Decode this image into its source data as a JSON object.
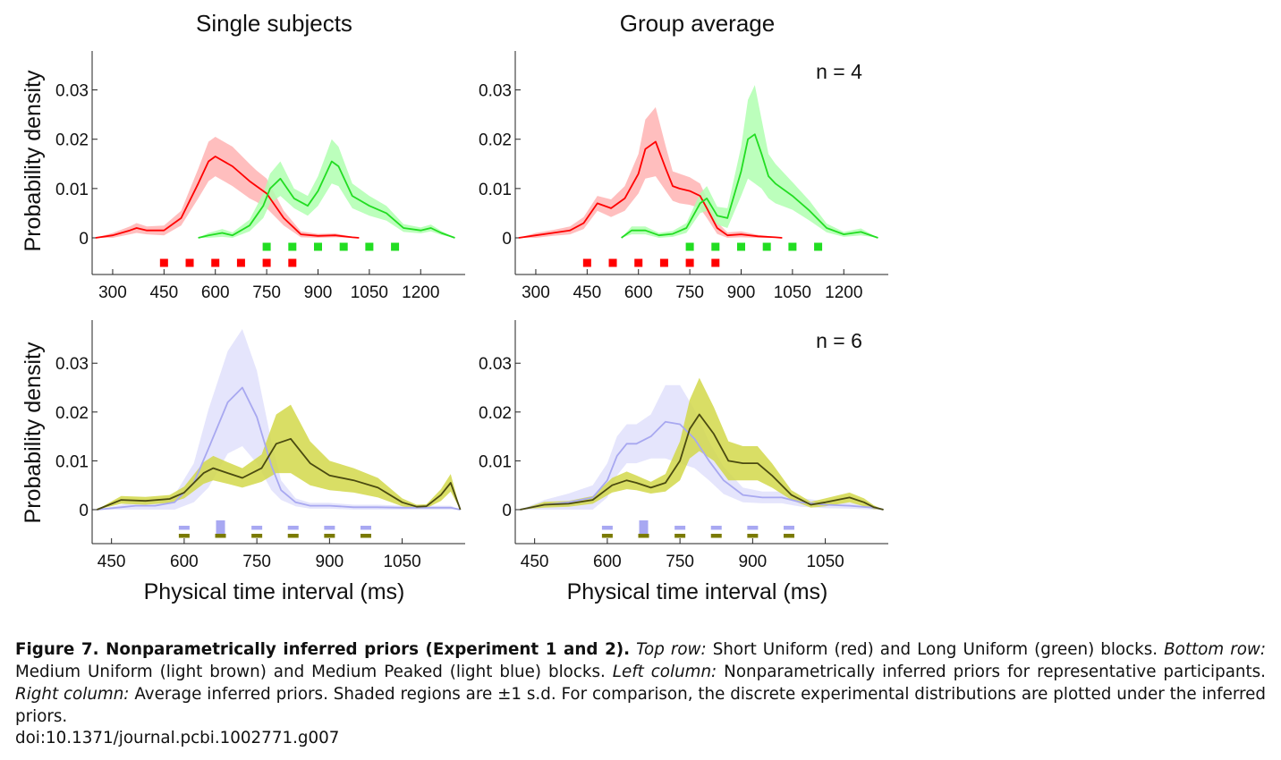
{
  "colors": {
    "short_uniform": "#ff0000",
    "short_uniform_band": "#ffb3b3",
    "long_uniform": "#22dd22",
    "long_uniform_band": "#b0ffb0",
    "medium_uniform": "#4a4a10",
    "medium_uniform_band": "#d2d84a",
    "medium_uniform_marker": "#7a7a00",
    "medium_peaked": "#a8a8f0",
    "medium_peaked_band": "#e0e0fc",
    "medium_peaked_marker": "#a8a8f2"
  },
  "chart_data": [
    {
      "type": "line",
      "title": "Single subjects",
      "ylabel": "Probability density",
      "xlabel": "",
      "xlim": [
        240,
        1330
      ],
      "ylim": [
        0,
        0.035
      ],
      "xticks": [
        "300",
        "450",
        "600",
        "750",
        "900",
        "1050",
        "1200"
      ],
      "yticks": [
        "0",
        "0.01",
        "0.02",
        "0.03"
      ],
      "annotation": "",
      "series": [
        {
          "key": "short_uniform",
          "x": [
            250,
            300,
            350,
            370,
            400,
            450,
            500,
            550,
            580,
            600,
            650,
            700,
            720,
            750,
            800,
            850,
            900,
            950,
            1000,
            1020
          ],
          "y": [
            0,
            0.0005,
            0.0015,
            0.002,
            0.0015,
            0.0015,
            0.004,
            0.011,
            0.0155,
            0.0165,
            0.0145,
            0.0115,
            0.0105,
            0.009,
            0.004,
            0.0007,
            0.0004,
            0.0005,
            0.0001,
            0
          ],
          "band": [
            0,
            0.0005,
            0.0008,
            0.001,
            0.0008,
            0.001,
            0.0015,
            0.003,
            0.004,
            0.004,
            0.004,
            0.0035,
            0.0032,
            0.003,
            0.0015,
            0.0006,
            0.0004,
            0.0004,
            0.0001,
            0
          ]
        },
        {
          "key": "long_uniform",
          "x": [
            550,
            580,
            620,
            650,
            700,
            740,
            760,
            790,
            830,
            870,
            900,
            940,
            960,
            1000,
            1050,
            1100,
            1150,
            1200,
            1230,
            1260,
            1300
          ],
          "y": [
            0,
            0.0005,
            0.001,
            0.0005,
            0.0025,
            0.0065,
            0.01,
            0.012,
            0.008,
            0.0065,
            0.0095,
            0.0155,
            0.0145,
            0.0085,
            0.0065,
            0.005,
            0.002,
            0.0015,
            0.002,
            0.001,
            0
          ],
          "band": [
            0,
            0.0005,
            0.0008,
            0.0006,
            0.0012,
            0.0025,
            0.003,
            0.0035,
            0.002,
            0.002,
            0.003,
            0.0045,
            0.004,
            0.0025,
            0.002,
            0.0015,
            0.0008,
            0.0006,
            0.0007,
            0.0004,
            0
          ]
        }
      ],
      "markers": [
        {
          "key": "long_uniform",
          "x": [
            750,
            825,
            900,
            975,
            1050,
            1125
          ]
        },
        {
          "key": "short_uniform",
          "x": [
            450,
            525,
            600,
            675,
            750,
            825
          ]
        }
      ]
    },
    {
      "type": "line",
      "title": "Group average",
      "ylabel": "",
      "xlabel": "",
      "xlim": [
        240,
        1330
      ],
      "ylim": [
        0,
        0.035
      ],
      "xticks": [
        "300",
        "450",
        "600",
        "750",
        "900",
        "1050",
        "1200"
      ],
      "yticks": [
        "0",
        "0.01",
        "0.02",
        "0.03"
      ],
      "annotation": "n = 4",
      "series": [
        {
          "key": "short_uniform",
          "x": [
            250,
            300,
            350,
            400,
            440,
            480,
            520,
            560,
            600,
            620,
            650,
            680,
            700,
            720,
            750,
            780,
            800,
            830,
            860,
            900,
            950,
            1000,
            1020
          ],
          "y": [
            0,
            0.0005,
            0.001,
            0.0015,
            0.003,
            0.007,
            0.006,
            0.008,
            0.013,
            0.018,
            0.0195,
            0.014,
            0.0105,
            0.01,
            0.0095,
            0.0085,
            0.006,
            0.002,
            0.0005,
            0.0007,
            0.0003,
            0.0001,
            0
          ],
          "band": [
            0,
            0.0005,
            0.0006,
            0.0008,
            0.0012,
            0.0015,
            0.0018,
            0.0025,
            0.004,
            0.006,
            0.007,
            0.0045,
            0.003,
            0.003,
            0.0028,
            0.0025,
            0.002,
            0.0012,
            0.0006,
            0.0006,
            0.0003,
            0.0001,
            0
          ]
        },
        {
          "key": "long_uniform",
          "x": [
            550,
            580,
            620,
            660,
            700,
            740,
            780,
            800,
            830,
            860,
            900,
            920,
            940,
            960,
            980,
            1000,
            1050,
            1100,
            1150,
            1200,
            1250,
            1300
          ],
          "y": [
            0,
            0.0015,
            0.0015,
            0.0005,
            0.0008,
            0.002,
            0.007,
            0.008,
            0.0045,
            0.004,
            0.0135,
            0.02,
            0.021,
            0.017,
            0.0125,
            0.011,
            0.0085,
            0.0055,
            0.002,
            0.0007,
            0.0012,
            0
          ],
          "band": [
            0,
            0.0008,
            0.0008,
            0.0005,
            0.0006,
            0.001,
            0.002,
            0.0025,
            0.0018,
            0.002,
            0.005,
            0.008,
            0.01,
            0.007,
            0.0045,
            0.004,
            0.0028,
            0.002,
            0.0009,
            0.0005,
            0.0007,
            0
          ]
        }
      ],
      "markers": [
        {
          "key": "long_uniform",
          "x": [
            750,
            825,
            900,
            975,
            1050,
            1125
          ]
        },
        {
          "key": "short_uniform",
          "x": [
            450,
            525,
            600,
            675,
            750,
            825
          ]
        }
      ]
    },
    {
      "type": "line",
      "title": "",
      "ylabel": "Probability density",
      "xlabel": "Physical time interval (ms)",
      "xlim": [
        410,
        1180
      ],
      "ylim": [
        0,
        0.037
      ],
      "xticks": [
        "450",
        "600",
        "750",
        "900",
        "1050"
      ],
      "yticks": [
        "0",
        "0.01",
        "0.02",
        "0.03"
      ],
      "annotation": "",
      "series": [
        {
          "key": "medium_peaked",
          "x": [
            420,
            470,
            500,
            540,
            580,
            620,
            650,
            690,
            720,
            750,
            780,
            800,
            830,
            860,
            900,
            950,
            1000,
            1050,
            1100,
            1150,
            1170
          ],
          "y": [
            0,
            0.0005,
            0.0008,
            0.0008,
            0.0015,
            0.0055,
            0.0125,
            0.022,
            0.025,
            0.019,
            0.009,
            0.004,
            0.0015,
            0.0008,
            0.0008,
            0.0005,
            0.0005,
            0.0004,
            0.0004,
            0.0004,
            0
          ],
          "band": [
            0,
            0.0005,
            0.0008,
            0.0008,
            0.0015,
            0.004,
            0.008,
            0.0105,
            0.012,
            0.0095,
            0.005,
            0.002,
            0.0008,
            0.0006,
            0.0006,
            0.0005,
            0.0005,
            0.0004,
            0.0004,
            0.0004,
            0
          ]
        },
        {
          "key": "medium_uniform",
          "x": [
            420,
            470,
            520,
            570,
            600,
            640,
            660,
            690,
            720,
            760,
            790,
            820,
            860,
            900,
            950,
            1000,
            1050,
            1080,
            1100,
            1130,
            1150,
            1170
          ],
          "y": [
            0,
            0.002,
            0.0018,
            0.0022,
            0.0035,
            0.0075,
            0.0085,
            0.0075,
            0.0065,
            0.0085,
            0.0135,
            0.0145,
            0.0095,
            0.007,
            0.006,
            0.0045,
            0.0015,
            0.0006,
            0.0007,
            0.003,
            0.0055,
            0
          ],
          "band": [
            0,
            0.0008,
            0.0008,
            0.0008,
            0.0012,
            0.0022,
            0.0025,
            0.0022,
            0.002,
            0.0028,
            0.006,
            0.007,
            0.0045,
            0.003,
            0.0025,
            0.002,
            0.0008,
            0.0004,
            0.0004,
            0.0012,
            0.0018,
            0
          ]
        }
      ],
      "markers": [
        {
          "key": "medium_peaked",
          "x": [
            600,
            675,
            750,
            825,
            900,
            975
          ],
          "center_x": 675,
          "center_tall": true
        },
        {
          "key": "medium_uniform",
          "x": [
            600,
            675,
            750,
            825,
            900,
            975
          ]
        }
      ]
    },
    {
      "type": "line",
      "title": "",
      "ylabel": "",
      "xlabel": "Physical time interval (ms)",
      "xlim": [
        410,
        1180
      ],
      "ylim": [
        0,
        0.037
      ],
      "xticks": [
        "450",
        "600",
        "750",
        "900",
        "1050"
      ],
      "yticks": [
        "0",
        "0.01",
        "0.02",
        "0.03"
      ],
      "annotation": "n = 6",
      "series": [
        {
          "key": "medium_peaked",
          "x": [
            420,
            470,
            520,
            570,
            600,
            620,
            640,
            660,
            690,
            720,
            750,
            780,
            810,
            840,
            880,
            920,
            960,
            1000,
            1050,
            1100,
            1150,
            1170
          ],
          "y": [
            0,
            0.001,
            0.0015,
            0.0025,
            0.006,
            0.011,
            0.0135,
            0.0135,
            0.015,
            0.018,
            0.0175,
            0.0145,
            0.01,
            0.006,
            0.003,
            0.0025,
            0.0025,
            0.0015,
            0.001,
            0.0008,
            0.0004,
            0
          ],
          "band": [
            0,
            0.001,
            0.0018,
            0.0025,
            0.0035,
            0.004,
            0.004,
            0.004,
            0.0045,
            0.0075,
            0.008,
            0.006,
            0.004,
            0.0028,
            0.0015,
            0.0012,
            0.0012,
            0.0009,
            0.0007,
            0.0006,
            0.0004,
            0
          ]
        },
        {
          "key": "medium_uniform",
          "x": [
            420,
            470,
            520,
            570,
            610,
            640,
            660,
            690,
            720,
            750,
            770,
            790,
            820,
            850,
            880,
            910,
            940,
            980,
            1020,
            1050,
            1100,
            1130,
            1150,
            1170
          ],
          "y": [
            0,
            0.001,
            0.0012,
            0.002,
            0.005,
            0.006,
            0.0055,
            0.0045,
            0.0055,
            0.01,
            0.0165,
            0.0195,
            0.0155,
            0.01,
            0.0095,
            0.0095,
            0.007,
            0.003,
            0.001,
            0.0015,
            0.0025,
            0.0015,
            0.0005,
            0
          ],
          "band": [
            0,
            0.0006,
            0.0006,
            0.0008,
            0.0015,
            0.0018,
            0.0015,
            0.0012,
            0.0018,
            0.004,
            0.006,
            0.0075,
            0.0055,
            0.004,
            0.0035,
            0.0035,
            0.0025,
            0.001,
            0.0006,
            0.0008,
            0.001,
            0.0008,
            0.0004,
            0
          ]
        }
      ],
      "markers": [
        {
          "key": "medium_peaked",
          "x": [
            600,
            675,
            750,
            825,
            900,
            975
          ],
          "center_x": 675,
          "center_tall": true
        },
        {
          "key": "medium_uniform",
          "x": [
            600,
            675,
            750,
            825,
            900,
            975
          ]
        }
      ]
    }
  ],
  "caption": {
    "label": "Figure 7. Nonparametrically inferred priors (Experiment 1 and 2).",
    "parts": [
      {
        "italic": "Top row:",
        "text": " Short Uniform (red) and Long Uniform (green) blocks. "
      },
      {
        "italic": "Bottom row:",
        "text": " Medium Uniform (light brown) and Medium Peaked (light blue) blocks. "
      },
      {
        "italic": "Left column:",
        "text": " Nonparametrically inferred priors for representative participants. "
      },
      {
        "italic": "Right column:",
        "text": " Average inferred priors. Shaded regions are ±1 s.d. For comparison, the discrete experimental distributions are plotted under the inferred priors."
      }
    ],
    "doi": "doi:10.1371/journal.pcbi.1002771.g007"
  }
}
